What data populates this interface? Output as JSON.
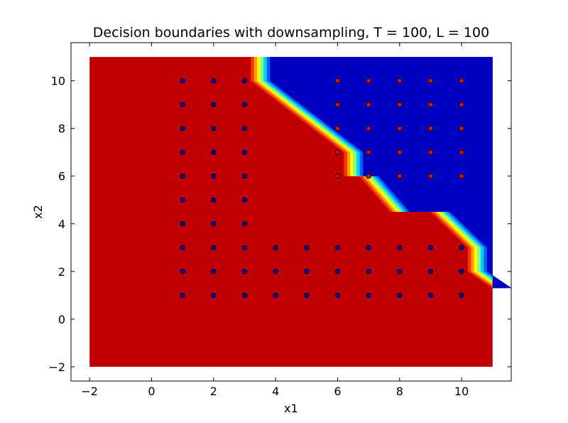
{
  "chart_data": {
    "type": "scatter",
    "title": "Decision boundaries with downsampling, T = 100, L = 100",
    "xlabel": "x1",
    "ylabel": "x2",
    "xlim": [
      -2.6,
      11.6
    ],
    "ylim": [
      -2.6,
      11.6
    ],
    "xticks": [
      -2,
      0,
      2,
      4,
      6,
      8,
      10
    ],
    "yticks": [
      -2,
      0,
      2,
      4,
      6,
      8,
      10
    ],
    "xtick_labels": [
      "−2",
      "0",
      "2",
      "4",
      "6",
      "8",
      "10"
    ],
    "ytick_labels": [
      "−2",
      "0",
      "2",
      "4",
      "6",
      "8",
      "10"
    ],
    "grid": false,
    "legend": "none",
    "background_region": {
      "x_range": [
        -2,
        11
      ],
      "y_range": [
        -2,
        11
      ],
      "color": "#c00000"
    },
    "class_region": {
      "color": "#0000c0",
      "boundary": [
        [
          3.2,
          11
        ],
        [
          3.2,
          10
        ],
        [
          6.2,
          7
        ],
        [
          6.2,
          6
        ],
        [
          6.7,
          6
        ],
        [
          7.7,
          4.5
        ],
        [
          9.0,
          4.5
        ],
        [
          10.2,
          3.0
        ],
        [
          10.2,
          2.0
        ],
        [
          11,
          1.3
        ]
      ],
      "band_colors": [
        "#ff3000",
        "#ffa000",
        "#ffff00",
        "#80ff80",
        "#00d0ff",
        "#0060ff"
      ]
    },
    "series": [
      {
        "color": "#0000c0",
        "points": [
          [
            1,
            10
          ],
          [
            1,
            9
          ],
          [
            1,
            8
          ],
          [
            1,
            7
          ],
          [
            1,
            6
          ],
          [
            1,
            5
          ],
          [
            1,
            4
          ],
          [
            1,
            3
          ],
          [
            1,
            2
          ],
          [
            1,
            1
          ],
          [
            2,
            10
          ],
          [
            2,
            9
          ],
          [
            2,
            8
          ],
          [
            2,
            7
          ],
          [
            2,
            6
          ],
          [
            2,
            5
          ],
          [
            2,
            4
          ],
          [
            2,
            3
          ],
          [
            2,
            2
          ],
          [
            2,
            1
          ],
          [
            3,
            10
          ],
          [
            3,
            9
          ],
          [
            3,
            8
          ],
          [
            3,
            7
          ],
          [
            3,
            6
          ],
          [
            3,
            5
          ],
          [
            3,
            4
          ],
          [
            3,
            3
          ],
          [
            3,
            2
          ],
          [
            3,
            1
          ],
          [
            4,
            3
          ],
          [
            4,
            2
          ],
          [
            4,
            1
          ],
          [
            5,
            3
          ],
          [
            5,
            2
          ],
          [
            5,
            1
          ],
          [
            6,
            3
          ],
          [
            6,
            2
          ],
          [
            6,
            1
          ],
          [
            7,
            3
          ],
          [
            7,
            2
          ],
          [
            7,
            1
          ],
          [
            8,
            3
          ],
          [
            8,
            2
          ],
          [
            8,
            1
          ],
          [
            9,
            3
          ],
          [
            9,
            2
          ],
          [
            9,
            1
          ],
          [
            10,
            3
          ],
          [
            10,
            2
          ],
          [
            10,
            1
          ]
        ]
      },
      {
        "color": "#ff0000",
        "points": [
          [
            6,
            10
          ],
          [
            6,
            9
          ],
          [
            6,
            8
          ],
          [
            6,
            7
          ],
          [
            6,
            6
          ],
          [
            7,
            10
          ],
          [
            7,
            9
          ],
          [
            7,
            8
          ],
          [
            7,
            7
          ],
          [
            7,
            6
          ],
          [
            8,
            10
          ],
          [
            8,
            9
          ],
          [
            8,
            8
          ],
          [
            8,
            7
          ],
          [
            8,
            6
          ],
          [
            9,
            10
          ],
          [
            9,
            9
          ],
          [
            9,
            8
          ],
          [
            9,
            7
          ],
          [
            9,
            6
          ],
          [
            10,
            10
          ],
          [
            10,
            9
          ],
          [
            10,
            8
          ],
          [
            10,
            7
          ],
          [
            10,
            6
          ]
        ]
      }
    ]
  }
}
